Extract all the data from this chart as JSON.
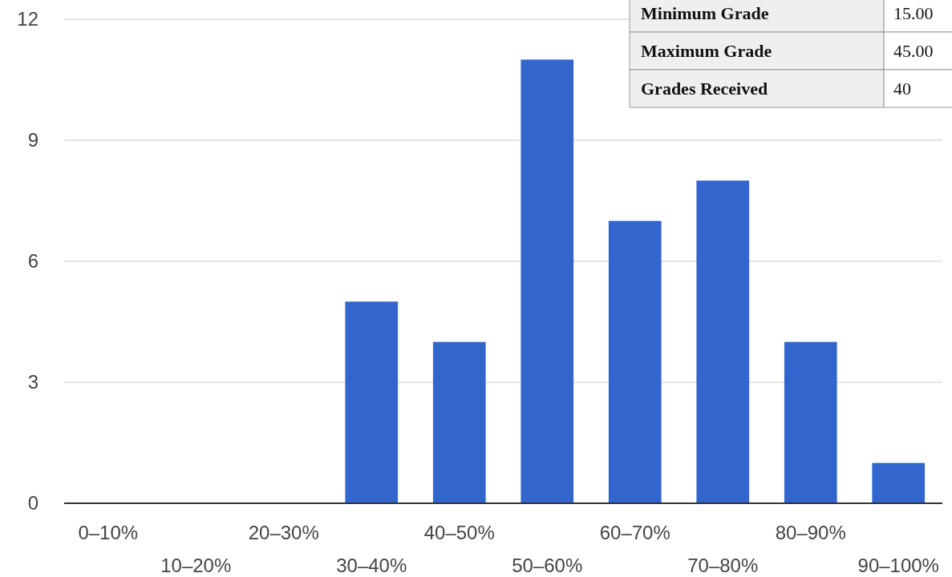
{
  "chart_data": {
    "type": "bar",
    "categories": [
      "0–10%",
      "10–20%",
      "20–30%",
      "30–40%",
      "40–50%",
      "50–60%",
      "60–70%",
      "70–80%",
      "80–90%",
      "90–100%"
    ],
    "values": [
      0,
      0,
      0,
      5,
      4,
      11,
      7,
      8,
      4,
      1
    ],
    "color": "#3366cc",
    "ylim": [
      0,
      12
    ],
    "yticks": [
      0,
      3,
      6,
      9,
      12
    ],
    "grid": "y",
    "annotations": [
      "Minimum Grade",
      "15.00",
      "Maximum Grade",
      "45.00",
      "Grades Received",
      "40"
    ]
  }
}
